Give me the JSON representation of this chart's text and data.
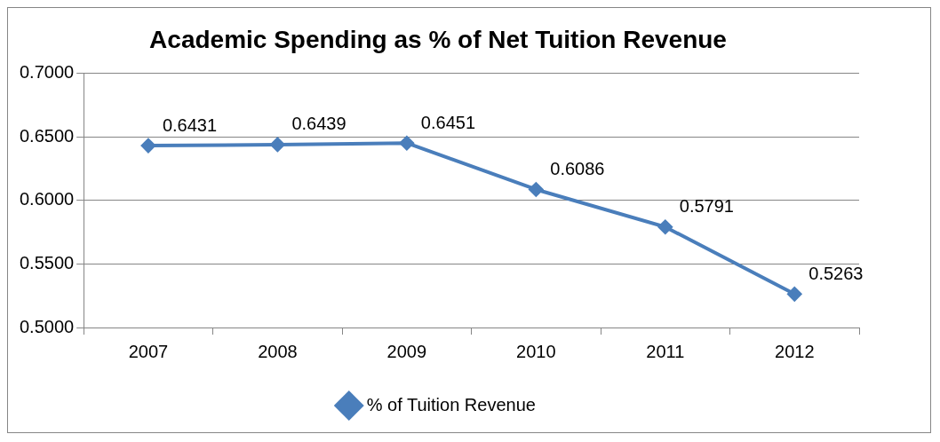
{
  "chart_data": {
    "type": "line",
    "title": "Academic Spending as % of Net Tuition Revenue",
    "categories": [
      "2007",
      "2008",
      "2009",
      "2010",
      "2011",
      "2012"
    ],
    "series": [
      {
        "name": "% of Tuition Revenue",
        "color": "#4a7ebb",
        "values": [
          0.6431,
          0.6439,
          0.6451,
          0.6086,
          0.5791,
          0.5263
        ]
      }
    ],
    "ylim": [
      0.5,
      0.7
    ],
    "yticks": [
      {
        "value": 0.5,
        "label": "0.5000"
      },
      {
        "value": 0.55,
        "label": "0.5500"
      },
      {
        "value": 0.6,
        "label": "0.6000"
      },
      {
        "value": 0.65,
        "label": "0.6500"
      },
      {
        "value": 0.7,
        "label": "0.7000"
      }
    ],
    "grid": "y",
    "legend": "bottom",
    "marker": "diamond",
    "line_style": "solid",
    "data_labels": true
  }
}
